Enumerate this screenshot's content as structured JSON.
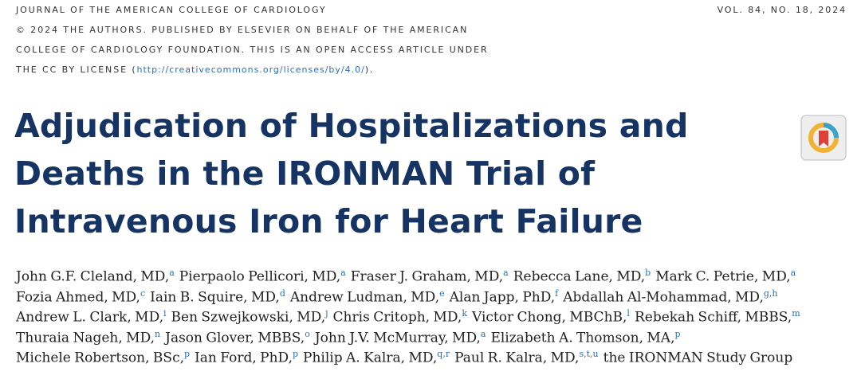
{
  "header": {
    "journal": "JOURNAL OF THE AMERICAN COLLEGE OF CARDIOLOGY",
    "volume": "VOL. 84, NO. 18, 2024",
    "license_lines": [
      "© 2024 THE AUTHORS. PUBLISHED BY ELSEVIER ON BEHALF OF THE AMERICAN",
      "COLLEGE OF CARDIOLOGY FOUNDATION. THIS IS AN OPEN ACCESS ARTICLE UNDER"
    ],
    "license_last": {
      "prefix": "THE CC BY LICENSE (",
      "link": "http://creativecommons.org/licenses/by/4.0/",
      "suffix": ")."
    }
  },
  "title_lines": [
    "Adjudication of Hospitalizations and",
    "Deaths in the IRONMAN Trial of",
    "Intravenous Iron for Heart Failure"
  ],
  "authors": [
    [
      {
        "text": "John G.F. Cleland, MD,",
        "aff": "a"
      },
      {
        "text": "Pierpaolo Pellicori, MD,",
        "aff": "a"
      },
      {
        "text": "Fraser J. Graham, MD,",
        "aff": "a"
      },
      {
        "text": "Rebecca Lane, MD,",
        "aff": "b"
      },
      {
        "text": "Mark C. Petrie, MD,",
        "aff": "a"
      }
    ],
    [
      {
        "text": "Fozia Ahmed, MD,",
        "aff": "c"
      },
      {
        "text": "Iain B. Squire, MD,",
        "aff": "d"
      },
      {
        "text": "Andrew Ludman, MD,",
        "aff": "e"
      },
      {
        "text": "Alan Japp, PhD,",
        "aff": "f"
      },
      {
        "text": "Abdallah Al-Mohammad, MD,",
        "aff": "g,h"
      }
    ],
    [
      {
        "text": "Andrew L. Clark, MD,",
        "aff": "i"
      },
      {
        "text": "Ben Szwejkowski, MD,",
        "aff": "j"
      },
      {
        "text": "Chris Critoph, MD,",
        "aff": "k"
      },
      {
        "text": "Victor Chong, MBChB,",
        "aff": "l"
      },
      {
        "text": "Rebekah Schiff, MBBS,",
        "aff": "m"
      }
    ],
    [
      {
        "text": "Thuraia Nageh, MD,",
        "aff": "n"
      },
      {
        "text": "Jason Glover, MBBS,",
        "aff": "o"
      },
      {
        "text": "John J.V. McMurray, MD,",
        "aff": "a"
      },
      {
        "text": "Elizabeth A. Thomson, MA,",
        "aff": "p"
      }
    ],
    [
      {
        "text": "Michele Robertson, BSc,",
        "aff": "p"
      },
      {
        "text": "Ian Ford, PhD,",
        "aff": "p"
      },
      {
        "text": "Philip A. Kalra, MD,",
        "aff": "q,r"
      },
      {
        "text": "Paul R. Kalra, MD,",
        "aff": "s,t,u"
      },
      {
        "text": "the IRONMAN Study Group",
        "aff": null
      }
    ]
  ]
}
